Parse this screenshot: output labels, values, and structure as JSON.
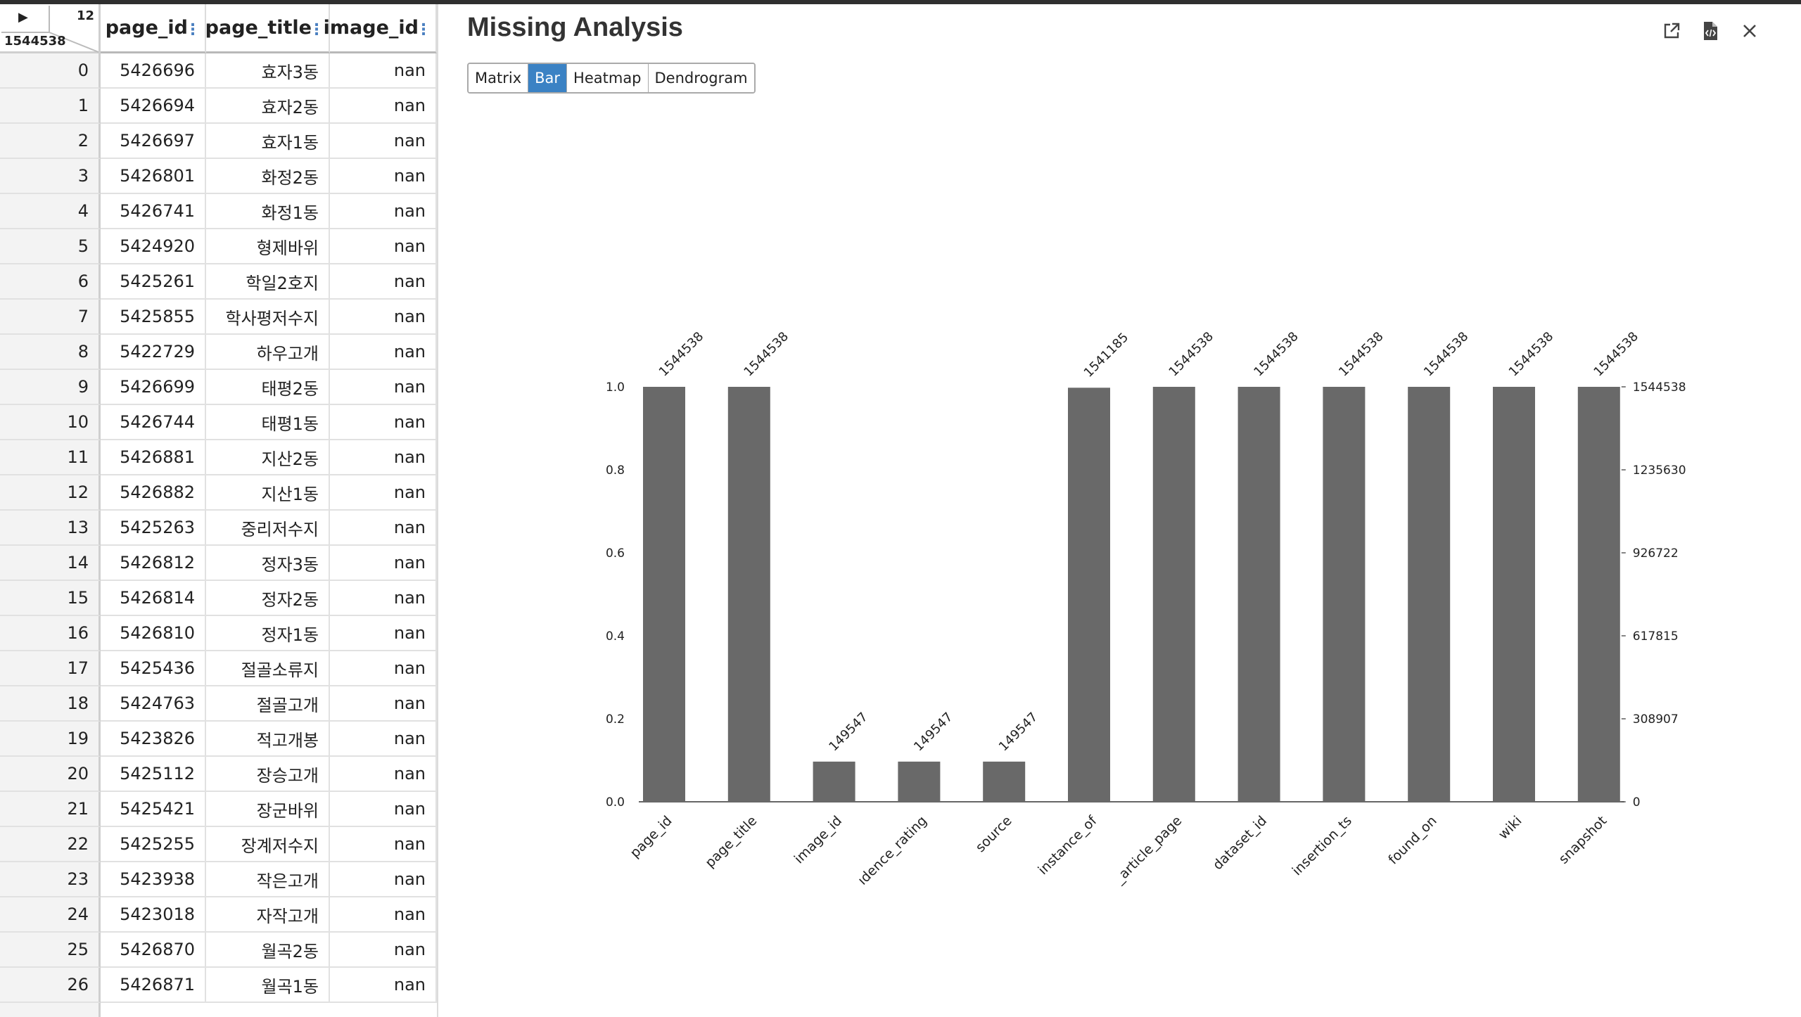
{
  "grid": {
    "column_count": "12",
    "row_count": "1544538",
    "headers": [
      "page_id",
      "page_title",
      "image_id"
    ],
    "rows": [
      {
        "idx": "0",
        "page_id": "5426696",
        "page_title": "효자3동",
        "image_id": "nan"
      },
      {
        "idx": "1",
        "page_id": "5426694",
        "page_title": "효자2동",
        "image_id": "nan"
      },
      {
        "idx": "2",
        "page_id": "5426697",
        "page_title": "효자1동",
        "image_id": "nan"
      },
      {
        "idx": "3",
        "page_id": "5426801",
        "page_title": "화정2동",
        "image_id": "nan"
      },
      {
        "idx": "4",
        "page_id": "5426741",
        "page_title": "화정1동",
        "image_id": "nan"
      },
      {
        "idx": "5",
        "page_id": "5424920",
        "page_title": "형제바위",
        "image_id": "nan"
      },
      {
        "idx": "6",
        "page_id": "5425261",
        "page_title": "학일2호지",
        "image_id": "nan"
      },
      {
        "idx": "7",
        "page_id": "5425855",
        "page_title": "학사평저수지",
        "image_id": "nan"
      },
      {
        "idx": "8",
        "page_id": "5422729",
        "page_title": "하우고개",
        "image_id": "nan"
      },
      {
        "idx": "9",
        "page_id": "5426699",
        "page_title": "태평2동",
        "image_id": "nan"
      },
      {
        "idx": "10",
        "page_id": "5426744",
        "page_title": "태평1동",
        "image_id": "nan"
      },
      {
        "idx": "11",
        "page_id": "5426881",
        "page_title": "지산2동",
        "image_id": "nan"
      },
      {
        "idx": "12",
        "page_id": "5426882",
        "page_title": "지산1동",
        "image_id": "nan"
      },
      {
        "idx": "13",
        "page_id": "5425263",
        "page_title": "중리저수지",
        "image_id": "nan"
      },
      {
        "idx": "14",
        "page_id": "5426812",
        "page_title": "정자3동",
        "image_id": "nan"
      },
      {
        "idx": "15",
        "page_id": "5426814",
        "page_title": "정자2동",
        "image_id": "nan"
      },
      {
        "idx": "16",
        "page_id": "5426810",
        "page_title": "정자1동",
        "image_id": "nan"
      },
      {
        "idx": "17",
        "page_id": "5425436",
        "page_title": "절골소류지",
        "image_id": "nan"
      },
      {
        "idx": "18",
        "page_id": "5424763",
        "page_title": "절골고개",
        "image_id": "nan"
      },
      {
        "idx": "19",
        "page_id": "5423826",
        "page_title": "적고개봉",
        "image_id": "nan"
      },
      {
        "idx": "20",
        "page_id": "5425112",
        "page_title": "장승고개",
        "image_id": "nan"
      },
      {
        "idx": "21",
        "page_id": "5425421",
        "page_title": "장군바위",
        "image_id": "nan"
      },
      {
        "idx": "22",
        "page_id": "5425255",
        "page_title": "장계저수지",
        "image_id": "nan"
      },
      {
        "idx": "23",
        "page_id": "5423938",
        "page_title": "작은고개",
        "image_id": "nan"
      },
      {
        "idx": "24",
        "page_id": "5423018",
        "page_title": "자작고개",
        "image_id": "nan"
      },
      {
        "idx": "25",
        "page_id": "5426870",
        "page_title": "월곡2동",
        "image_id": "nan"
      },
      {
        "idx": "26",
        "page_id": "5426871",
        "page_title": "월곡1동",
        "image_id": "nan"
      }
    ]
  },
  "panel": {
    "title": "Missing Analysis",
    "icons": [
      "external-link-icon",
      "code-file-icon",
      "close-icon"
    ],
    "tabs": [
      {
        "label": "Matrix",
        "active": false
      },
      {
        "label": "Bar",
        "active": true
      },
      {
        "label": "Heatmap",
        "active": false
      },
      {
        "label": "Dendrogram",
        "active": false
      }
    ]
  },
  "colors": {
    "accent": "#3b82c4",
    "bar": "#696969",
    "topbar": "#2f2f2f"
  },
  "chart_data": {
    "type": "bar",
    "categories": [
      "page_id",
      "page_title",
      "image_id",
      "confidence_rating",
      "source",
      "instance_of",
      "article_page",
      "dataset_id",
      "insertion_ts",
      "found_on",
      "wiki",
      "snapshot"
    ],
    "category_tick_labels": [
      "page_id",
      "page_title",
      "image_id",
      "ıdence_rating",
      "source",
      "instance_of",
      "_article_page",
      "dataset_id",
      "insertion_ts",
      "found_on",
      "wiki",
      "snapshot"
    ],
    "values": [
      1544538,
      1544538,
      149547,
      149547,
      149547,
      1541185,
      1544538,
      1544538,
      1544538,
      1544538,
      1544538,
      1544538
    ],
    "value_labels": [
      "1544538",
      "1544538",
      "149547",
      "149547",
      "149547",
      "1541185",
      "1544538",
      "1544538",
      "1544538",
      "1544538",
      "1544538",
      "1544538"
    ],
    "total": 1544538,
    "ylim": [
      0,
      1.0
    ],
    "left_ticks": [
      "0.0",
      "0.2",
      "0.4",
      "0.6",
      "0.8",
      "1.0"
    ],
    "right_ticks": [
      "0",
      "308907",
      "617815",
      "926722",
      "1235630",
      "1544538"
    ],
    "grid": false
  }
}
